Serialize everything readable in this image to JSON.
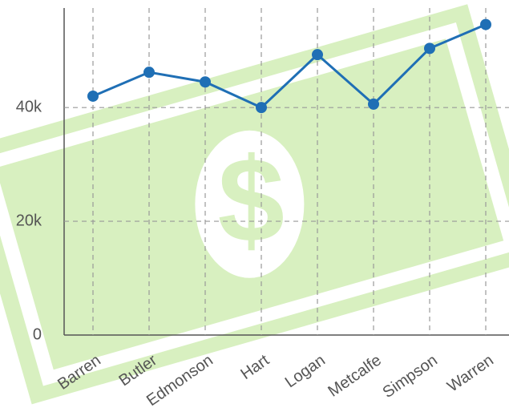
{
  "chart_data": {
    "type": "line",
    "categories": [
      "Barren",
      "Butler",
      "Edmonson",
      "Hart",
      "Logan",
      "Metcalfe",
      "Simpson",
      "Warren"
    ],
    "values": [
      42000,
      46200,
      44500,
      40000,
      49300,
      40600,
      50400,
      54600
    ],
    "color": "#1f6fb5",
    "ylim": [
      0,
      57500
    ],
    "yticks": [
      0,
      {
        "value": 20000,
        "label": "20k"
      },
      {
        "value": 40000,
        "label": "40k"
      }
    ],
    "grid": true
  }
}
